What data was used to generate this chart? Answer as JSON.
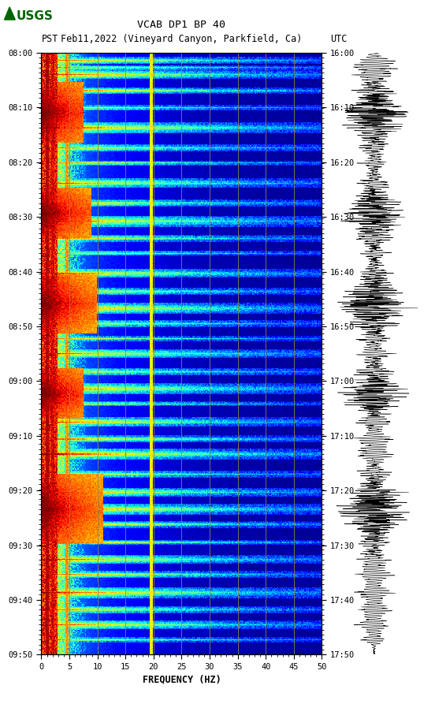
{
  "title_line1": "VCAB DP1 BP 40",
  "title_line2_left": "PST",
  "title_line2_mid": "Feb11,2022 (Vineyard Canyon, Parkfield, Ca)",
  "title_line2_right": "UTC",
  "xlabel": "FREQUENCY (HZ)",
  "freq_min": 0,
  "freq_max": 50,
  "freq_ticks": [
    0,
    5,
    10,
    15,
    20,
    25,
    30,
    35,
    40,
    45,
    50
  ],
  "time_labels_left": [
    "08:00",
    "08:10",
    "08:20",
    "08:30",
    "08:40",
    "08:50",
    "09:00",
    "09:10",
    "09:20",
    "09:30",
    "09:40",
    "09:50"
  ],
  "time_labels_right": [
    "16:00",
    "16:10",
    "16:20",
    "16:30",
    "16:40",
    "16:50",
    "17:00",
    "17:10",
    "17:20",
    "17:30",
    "17:40",
    "17:50"
  ],
  "n_time_bins": 600,
  "n_freq_bins": 300,
  "bg_color": "#ffffff",
  "spectrogram_cmap": "jet",
  "vertical_lines_freq": [
    5,
    10,
    15,
    20,
    25,
    30,
    35,
    40,
    45
  ],
  "vertical_line_color": "#888844",
  "figsize": [
    5.52,
    8.93
  ],
  "dpi": 100,
  "usgs_color": "#006400"
}
